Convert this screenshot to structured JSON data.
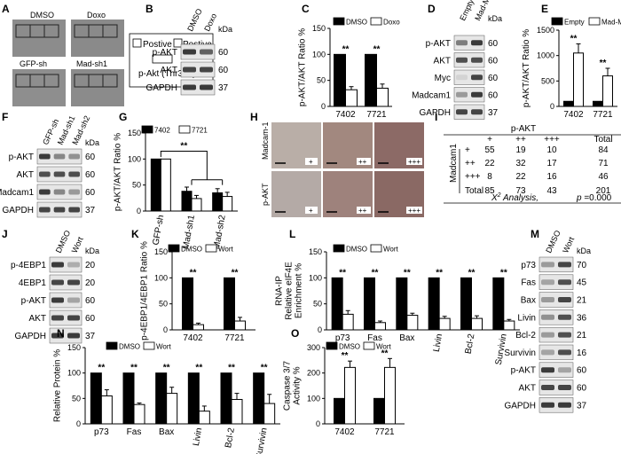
{
  "panels": {
    "A": {
      "label": "A",
      "images": [
        "DMSO",
        "Doxo",
        "GFP-sh",
        "Mad-sh1"
      ],
      "legend": [
        "Postive",
        "Postive",
        "p-Akt (Thr308)"
      ]
    },
    "B": {
      "label": "B",
      "lanes": [
        "DMSO",
        "Doxo"
      ],
      "kda": "kDa",
      "rows": [
        {
          "name": "p-AKT",
          "kda": "60"
        },
        {
          "name": "AKT",
          "kda": "60"
        },
        {
          "name": "GAPDH",
          "kda": "37"
        }
      ]
    },
    "C": {
      "label": "C"
    },
    "D": {
      "label": "D",
      "lanes": [
        "Empty",
        "Mad-Myc"
      ],
      "kda": "kDa",
      "rows": [
        {
          "name": "p-AKT",
          "kda": "60"
        },
        {
          "name": "AKT",
          "kda": "60"
        },
        {
          "name": "Myc",
          "kda": "60"
        },
        {
          "name": "Madcam1",
          "kda": "60"
        },
        {
          "name": "GAPDH",
          "kda": "37"
        }
      ]
    },
    "E": {
      "label": "E"
    },
    "F": {
      "label": "F",
      "lanes": [
        "GFP-sh",
        "Mad-sh1",
        "Mad-sh2"
      ],
      "kda": "kDa",
      "rows": [
        {
          "name": "p-AKT",
          "kda": "60"
        },
        {
          "name": "AKT",
          "kda": "60"
        },
        {
          "name": "Madcam1",
          "kda": "60"
        },
        {
          "name": "GAPDH",
          "kda": "37"
        }
      ]
    },
    "G": {
      "label": "G"
    },
    "H": {
      "label": "H",
      "rows": [
        "Madcam-1",
        "p-AKT"
      ],
      "grades": [
        "+",
        "++",
        "+++"
      ]
    },
    "I": {
      "label": "I",
      "title": "p-AKT",
      "col_headers": [
        "+",
        "++",
        "+++",
        "Total"
      ],
      "row_group": "Madcam1",
      "rows": [
        {
          "label": "+",
          "cells": [
            "55",
            "19",
            "10",
            "84"
          ]
        },
        {
          "label": "++",
          "cells": [
            "22",
            "32",
            "17",
            "71"
          ]
        },
        {
          "label": "+++",
          "cells": [
            "8",
            "22",
            "16",
            "46"
          ]
        },
        {
          "label": "Total",
          "cells": [
            "85",
            "73",
            "43",
            "201"
          ]
        }
      ],
      "analysis_x": "X",
      "analysis_sup": "2",
      "analysis": "Analysis,",
      "pvalue_p": "p",
      "pvalue": "=0.000"
    },
    "J": {
      "label": "J",
      "lanes": [
        "DMSO",
        "Wort"
      ],
      "kda": "kDa",
      "rows": [
        {
          "name": "p-4EBP1",
          "kda": "20"
        },
        {
          "name": "4EBP1",
          "kda": "20"
        },
        {
          "name": "p-AKT",
          "kda": "60"
        },
        {
          "name": "AKT",
          "kda": "60"
        },
        {
          "name": "GAPDH",
          "kda": "37"
        }
      ]
    },
    "K": {
      "label": "K"
    },
    "L": {
      "label": "L"
    },
    "M": {
      "label": "M",
      "lanes": [
        "DMSO",
        "Wort"
      ],
      "kda": "kDa",
      "rows": [
        {
          "name": "p73",
          "kda": "70"
        },
        {
          "name": "Fas",
          "kda": "45"
        },
        {
          "name": "Bax",
          "kda": "21"
        },
        {
          "name": "Livin",
          "kda": "36"
        },
        {
          "name": "Bcl-2",
          "kda": "21"
        },
        {
          "name": "Survivin",
          "kda": "16"
        },
        {
          "name": "p-AKT",
          "kda": "60"
        },
        {
          "name": "AKT",
          "kda": "60"
        },
        {
          "name": "GAPDH",
          "kda": "37"
        }
      ]
    },
    "N": {
      "label": "N"
    },
    "O": {
      "label": "O"
    }
  },
  "colors": {
    "filled": "#000000",
    "open": "#ffffff",
    "axis": "#000000"
  },
  "chart_data": [
    {
      "id": "C",
      "type": "bar",
      "ylabel": "p-AKT/AKT Ratio %",
      "ylim": [
        0,
        150
      ],
      "yticks": [
        0,
        50,
        100,
        150
      ],
      "categories": [
        "7402",
        "7721"
      ],
      "series": [
        {
          "name": "DMSO",
          "values": [
            100,
            100
          ],
          "errors": [
            0,
            0
          ]
        },
        {
          "name": "Doxo",
          "values": [
            32,
            35
          ],
          "errors": [
            6,
            8
          ]
        }
      ],
      "significance": [
        "**",
        "**"
      ],
      "legend": "top"
    },
    {
      "id": "E",
      "type": "bar",
      "ylabel": "p-AKT/AKT Ratio %",
      "ylim": [
        0,
        1500
      ],
      "yticks": [
        0,
        500,
        1000,
        1500
      ],
      "categories": [
        "7402",
        "7721"
      ],
      "series": [
        {
          "name": "Empty",
          "values": [
            100,
            100
          ],
          "errors": [
            0,
            0
          ]
        },
        {
          "name": "Mad-Myc",
          "values": [
            1050,
            600
          ],
          "errors": [
            180,
            150
          ]
        }
      ],
      "significance": [
        "**",
        "**"
      ],
      "legend": "top"
    },
    {
      "id": "G",
      "type": "bar",
      "ylabel": "p-AKT/AKT Ratio %",
      "ylim": [
        0,
        150
      ],
      "yticks": [
        0,
        50,
        100,
        150
      ],
      "categories": [
        "GFP-sh",
        "Mad-sh1",
        "Mad-sh2"
      ],
      "series": [
        {
          "name": "7402",
          "values": [
            100,
            38,
            35
          ],
          "errors": [
            0,
            8,
            8
          ]
        },
        {
          "name": "7721",
          "values": [
            100,
            24,
            28
          ],
          "errors": [
            0,
            6,
            8
          ]
        }
      ],
      "significance_top": "**",
      "legend": "top"
    },
    {
      "id": "K",
      "type": "bar",
      "ylabel": "p-4EBP1/4EBP1 Ratio %",
      "ylim": [
        0,
        150
      ],
      "yticks": [
        0,
        50,
        100,
        150
      ],
      "categories": [
        "7402",
        "7721"
      ],
      "series": [
        {
          "name": "DMSO",
          "values": [
            100,
            100
          ],
          "errors": [
            0,
            0
          ]
        },
        {
          "name": "Wort",
          "values": [
            10,
            17
          ],
          "errors": [
            3,
            7
          ]
        }
      ],
      "significance": [
        "**",
        "**"
      ],
      "legend": "top"
    },
    {
      "id": "L",
      "type": "bar",
      "ylabel_lines": [
        "RNA-IP",
        "Relative eIF4E",
        "Enrichment %"
      ],
      "ylim": [
        0,
        150
      ],
      "yticks": [
        0,
        50,
        100,
        150
      ],
      "categories": [
        "p73",
        "Fas",
        "Bax",
        "Livin",
        "Bcl-2",
        "Survivin"
      ],
      "series": [
        {
          "name": "DMSO",
          "values": [
            100,
            100,
            100,
            100,
            100,
            100
          ],
          "errors": [
            0,
            0,
            0,
            0,
            0,
            0
          ]
        },
        {
          "name": "Wort",
          "values": [
            30,
            14,
            28,
            22,
            22,
            17
          ],
          "errors": [
            7,
            3,
            4,
            4,
            5,
            3
          ]
        }
      ],
      "significance": [
        "**",
        "**",
        "**",
        "**",
        "**",
        "**"
      ],
      "legend": "top"
    },
    {
      "id": "N",
      "type": "bar",
      "ylabel": "Relative Protein %",
      "ylim": [
        0,
        150
      ],
      "yticks": [
        0,
        50,
        100,
        150
      ],
      "categories": [
        "p73",
        "Fas",
        "Bax",
        "Livin",
        "Bcl-2",
        "Survivin"
      ],
      "series": [
        {
          "name": "DMSO",
          "values": [
            100,
            100,
            100,
            100,
            100,
            100
          ],
          "errors": [
            0,
            0,
            0,
            0,
            0,
            0
          ]
        },
        {
          "name": "Wort",
          "values": [
            55,
            38,
            60,
            25,
            48,
            40
          ],
          "errors": [
            12,
            3,
            12,
            10,
            12,
            18
          ]
        }
      ],
      "significance": [
        "**",
        "**",
        "**",
        "**",
        "**",
        "**"
      ],
      "legend": "top"
    },
    {
      "id": "O",
      "type": "bar",
      "ylabel_lines": [
        "Caspase 3/7",
        "Activity %"
      ],
      "ylim": [
        0,
        300
      ],
      "yticks": [
        0,
        100,
        200,
        300
      ],
      "categories": [
        "7402",
        "7721"
      ],
      "series": [
        {
          "name": "DMSO",
          "values": [
            100,
            100
          ],
          "errors": [
            0,
            0
          ]
        },
        {
          "name": "Wort",
          "values": [
            222,
            222
          ],
          "errors": [
            25,
            35
          ]
        }
      ],
      "significance": [
        "**",
        "**"
      ],
      "legend": "top"
    }
  ]
}
